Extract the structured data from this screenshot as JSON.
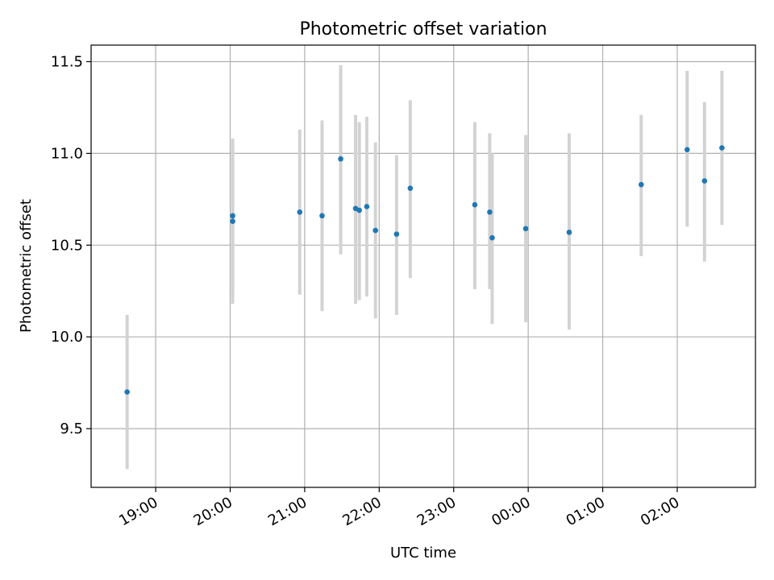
{
  "chart_data": {
    "type": "scatter",
    "title": "Photometric offset variation",
    "xlabel": "UTC time",
    "ylabel": "Photometric offset",
    "x_ticks": [
      "19:00",
      "20:00",
      "21:00",
      "22:00",
      "23:00",
      "00:00",
      "01:00",
      "02:00"
    ],
    "y_ticks": [
      "9.5",
      "10.0",
      "10.5",
      "11.0",
      "11.5"
    ],
    "xlim": [
      "18:08",
      "03:03"
    ],
    "ylim": [
      9.18,
      11.59
    ],
    "grid": true,
    "series": [
      {
        "points": [
          {
            "x": "18:37",
            "y": 9.7,
            "err_low": 9.28,
            "err_high": 10.12
          },
          {
            "x": "20:02",
            "y": 10.66,
            "err_low": 10.24,
            "err_high": 11.08
          },
          {
            "x": "20:02",
            "y": 10.63,
            "err_low": 10.18,
            "err_high": 11.05
          },
          {
            "x": "20:56",
            "y": 10.68,
            "err_low": 10.23,
            "err_high": 11.13
          },
          {
            "x": "21:14",
            "y": 10.66,
            "err_low": 10.14,
            "err_high": 11.18
          },
          {
            "x": "21:29",
            "y": 10.97,
            "err_low": 10.45,
            "err_high": 11.48
          },
          {
            "x": "21:41",
            "y": 10.7,
            "err_low": 10.18,
            "err_high": 11.21
          },
          {
            "x": "21:44",
            "y": 10.69,
            "err_low": 10.2,
            "err_high": 11.17
          },
          {
            "x": "21:50",
            "y": 10.71,
            "err_low": 10.22,
            "err_high": 11.2
          },
          {
            "x": "21:57",
            "y": 10.58,
            "err_low": 10.1,
            "err_high": 11.06
          },
          {
            "x": "22:14",
            "y": 10.56,
            "err_low": 10.12,
            "err_high": 10.99
          },
          {
            "x": "22:25",
            "y": 10.81,
            "err_low": 10.32,
            "err_high": 11.29
          },
          {
            "x": "23:17",
            "y": 10.72,
            "err_low": 10.26,
            "err_high": 11.17
          },
          {
            "x": "23:29",
            "y": 10.68,
            "err_low": 10.26,
            "err_high": 11.11
          },
          {
            "x": "23:31",
            "y": 10.54,
            "err_low": 10.07,
            "err_high": 11.0
          },
          {
            "x": "23:58",
            "y": 10.59,
            "err_low": 10.08,
            "err_high": 11.1
          },
          {
            "x": "00:33",
            "y": 10.57,
            "err_low": 10.04,
            "err_high": 11.11
          },
          {
            "x": "01:31",
            "y": 10.83,
            "err_low": 10.44,
            "err_high": 11.21
          },
          {
            "x": "02:08",
            "y": 11.02,
            "err_low": 10.6,
            "err_high": 11.45
          },
          {
            "x": "02:22",
            "y": 10.85,
            "err_low": 10.41,
            "err_high": 11.28
          },
          {
            "x": "02:36",
            "y": 11.03,
            "err_low": 10.61,
            "err_high": 11.45
          }
        ]
      }
    ],
    "colors": {
      "points": "#1f77b4",
      "errorbars": "#d3d3d3",
      "grid": "#b0b0b0"
    }
  }
}
